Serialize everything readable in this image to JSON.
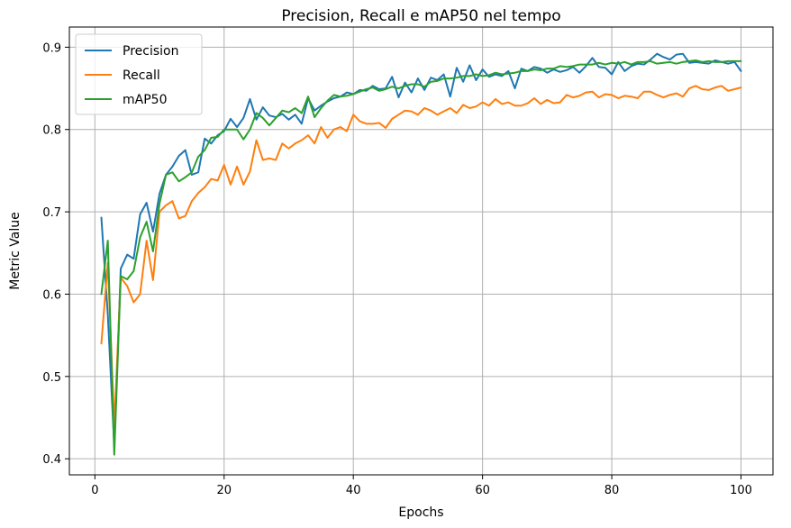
{
  "chart_data": {
    "type": "line",
    "title": "Precision, Recall e mAP50 nel tempo",
    "xlabel": "Epochs",
    "ylabel": "Metric Value",
    "xlim": [
      -3.95,
      104.95
    ],
    "ylim": [
      0.3805,
      0.9245
    ],
    "xticks": [
      0,
      20,
      40,
      60,
      80,
      100
    ],
    "yticks": [
      0.4,
      0.5,
      0.6,
      0.7,
      0.8,
      0.9
    ],
    "xtick_labels": [
      "0",
      "20",
      "40",
      "60",
      "80",
      "100"
    ],
    "ytick_labels": [
      "0.4",
      "0.5",
      "0.6",
      "0.7",
      "0.8",
      "0.9"
    ],
    "grid": true,
    "legend_position": "upper left",
    "x": [
      1,
      2,
      3,
      4,
      5,
      6,
      7,
      8,
      9,
      10,
      11,
      12,
      13,
      14,
      15,
      16,
      17,
      18,
      19,
      20,
      21,
      22,
      23,
      24,
      25,
      26,
      27,
      28,
      29,
      30,
      31,
      32,
      33,
      34,
      35,
      36,
      37,
      38,
      39,
      40,
      41,
      42,
      43,
      44,
      45,
      46,
      47,
      48,
      49,
      50,
      51,
      52,
      53,
      54,
      55,
      56,
      57,
      58,
      59,
      60,
      61,
      62,
      63,
      64,
      65,
      66,
      67,
      68,
      69,
      70,
      71,
      72,
      73,
      74,
      75,
      76,
      77,
      78,
      79,
      80,
      81,
      82,
      83,
      84,
      85,
      86,
      87,
      88,
      89,
      90,
      91,
      92,
      93,
      94,
      95,
      96,
      97,
      98,
      99,
      100
    ],
    "series": [
      {
        "name": "Precision",
        "color": "#1f77b4",
        "values": [
          0.693,
          0.575,
          0.415,
          0.631,
          0.648,
          0.643,
          0.697,
          0.711,
          0.676,
          0.722,
          0.745,
          0.755,
          0.768,
          0.775,
          0.745,
          0.748,
          0.789,
          0.783,
          0.793,
          0.798,
          0.813,
          0.803,
          0.814,
          0.837,
          0.812,
          0.827,
          0.817,
          0.815,
          0.819,
          0.812,
          0.818,
          0.807,
          0.838,
          0.823,
          0.829,
          0.834,
          0.838,
          0.84,
          0.845,
          0.843,
          0.848,
          0.847,
          0.853,
          0.849,
          0.85,
          0.864,
          0.839,
          0.857,
          0.845,
          0.862,
          0.848,
          0.863,
          0.86,
          0.867,
          0.84,
          0.875,
          0.858,
          0.878,
          0.86,
          0.873,
          0.864,
          0.867,
          0.865,
          0.871,
          0.85,
          0.874,
          0.871,
          0.876,
          0.874,
          0.869,
          0.873,
          0.87,
          0.872,
          0.876,
          0.869,
          0.877,
          0.887,
          0.876,
          0.875,
          0.867,
          0.882,
          0.871,
          0.877,
          0.88,
          0.879,
          0.885,
          0.892,
          0.888,
          0.885,
          0.891,
          0.892,
          0.881,
          0.882,
          0.881,
          0.88,
          0.884,
          0.882,
          0.88,
          0.882,
          0.871
        ]
      },
      {
        "name": "Recall",
        "color": "#ff7f0e",
        "values": [
          0.54,
          0.638,
          0.44,
          0.62,
          0.61,
          0.59,
          0.6,
          0.665,
          0.617,
          0.7,
          0.708,
          0.713,
          0.692,
          0.695,
          0.713,
          0.723,
          0.73,
          0.74,
          0.738,
          0.757,
          0.733,
          0.755,
          0.733,
          0.749,
          0.787,
          0.763,
          0.765,
          0.763,
          0.783,
          0.777,
          0.783,
          0.787,
          0.793,
          0.783,
          0.803,
          0.79,
          0.8,
          0.803,
          0.798,
          0.818,
          0.81,
          0.807,
          0.807,
          0.808,
          0.802,
          0.813,
          0.818,
          0.823,
          0.822,
          0.818,
          0.826,
          0.823,
          0.818,
          0.822,
          0.826,
          0.82,
          0.83,
          0.826,
          0.828,
          0.833,
          0.829,
          0.837,
          0.831,
          0.833,
          0.829,
          0.829,
          0.832,
          0.838,
          0.831,
          0.836,
          0.832,
          0.833,
          0.842,
          0.839,
          0.841,
          0.845,
          0.846,
          0.839,
          0.843,
          0.842,
          0.838,
          0.841,
          0.84,
          0.838,
          0.846,
          0.846,
          0.842,
          0.839,
          0.842,
          0.844,
          0.84,
          0.85,
          0.853,
          0.849,
          0.848,
          0.851,
          0.853,
          0.847,
          0.849,
          0.851
        ]
      },
      {
        "name": "mAP50",
        "color": "#2ca02c",
        "values": [
          0.6,
          0.665,
          0.405,
          0.622,
          0.618,
          0.628,
          0.669,
          0.688,
          0.652,
          0.71,
          0.745,
          0.748,
          0.737,
          0.742,
          0.748,
          0.767,
          0.775,
          0.79,
          0.791,
          0.8,
          0.8,
          0.8,
          0.788,
          0.8,
          0.82,
          0.814,
          0.805,
          0.814,
          0.823,
          0.821,
          0.826,
          0.82,
          0.84,
          0.815,
          0.826,
          0.835,
          0.842,
          0.84,
          0.841,
          0.843,
          0.846,
          0.849,
          0.851,
          0.847,
          0.849,
          0.852,
          0.85,
          0.853,
          0.855,
          0.855,
          0.852,
          0.858,
          0.859,
          0.862,
          0.862,
          0.863,
          0.865,
          0.865,
          0.867,
          0.865,
          0.866,
          0.869,
          0.867,
          0.868,
          0.869,
          0.871,
          0.871,
          0.873,
          0.872,
          0.874,
          0.874,
          0.877,
          0.876,
          0.877,
          0.879,
          0.879,
          0.879,
          0.881,
          0.879,
          0.881,
          0.88,
          0.882,
          0.879,
          0.882,
          0.882,
          0.883,
          0.88,
          0.881,
          0.882,
          0.88,
          0.882,
          0.883,
          0.884,
          0.882,
          0.883,
          0.882,
          0.882,
          0.883,
          0.883,
          0.883
        ]
      }
    ]
  }
}
